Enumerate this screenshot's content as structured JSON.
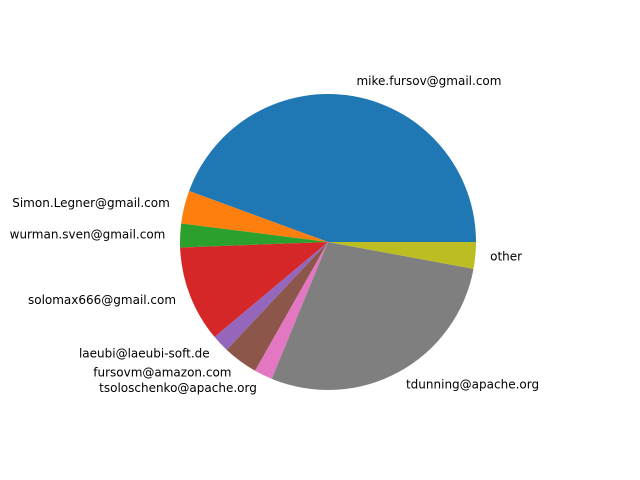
{
  "chart_data": {
    "type": "pie",
    "title": "",
    "start_angle_deg": 0,
    "direction": "counterclockwise",
    "slices": [
      {
        "label": "mike.fursov@gmail.com",
        "value": 44.4,
        "color": "#1f77b4"
      },
      {
        "label": "Simon.Legner@gmail.com",
        "value": 3.6,
        "color": "#ff7f0e"
      },
      {
        "label": "wurman.sven@gmail.com",
        "value": 2.6,
        "color": "#2ca02c"
      },
      {
        "label": "solomax666@gmail.com",
        "value": 10.5,
        "color": "#d62728"
      },
      {
        "label": "laeubi@laeubi-soft.de",
        "value": 1.9,
        "color": "#9467bd"
      },
      {
        "label": "fursovm@amazon.com",
        "value": 3.8,
        "color": "#8c564b"
      },
      {
        "label": "tsoloschenko@apache.org",
        "value": 2.0,
        "color": "#e377c2"
      },
      {
        "label": "tdunning@apache.org",
        "value": 28.3,
        "color": "#7f7f7f"
      },
      {
        "label": "other",
        "value": 2.9,
        "color": "#bcbd22"
      }
    ]
  }
}
